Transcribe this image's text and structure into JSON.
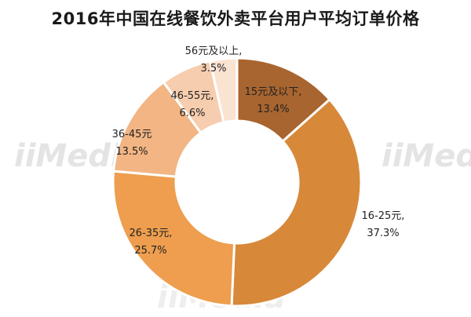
{
  "chart_data": {
    "type": "pie",
    "title": "2016年中国在线餐饮外卖平台用户平均订单价格",
    "donut": true,
    "slices": [
      {
        "label": "15元及以下,",
        "pct_text": "13.4%",
        "value": 13.4,
        "color": "#A8652F"
      },
      {
        "label": "16-25元,",
        "pct_text": "37.3%",
        "value": 37.3,
        "color": "#D78839"
      },
      {
        "label": "26-35元,",
        "pct_text": "25.7%",
        "value": 25.7,
        "color": "#EE9E4E"
      },
      {
        "label": "36-45元",
        "pct_text": "13.5%",
        "value": 13.5,
        "color": "#F2B583"
      },
      {
        "label": "46-55元,",
        "pct_text": "6.6%",
        "value": 6.6,
        "color": "#F6CDAE"
      },
      {
        "label": "56元及以上,",
        "pct_text": "3.5%",
        "value": 3.5,
        "color": "#FBE3D2"
      }
    ]
  },
  "watermark": {
    "text": "iiMedia"
  }
}
